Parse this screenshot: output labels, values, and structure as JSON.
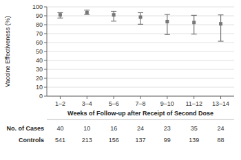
{
  "chart_data": {
    "type": "errorbar",
    "xlabel": "Weeks of Follow-up after Receipt of Second Dose",
    "ylabel": "Vaccine Effectiveness (%)",
    "categories": [
      "1–2",
      "3–4",
      "5–6",
      "7–8",
      "9–10",
      "11–12",
      "13–14"
    ],
    "values": [
      91.0,
      93.5,
      91.0,
      88.5,
      83.5,
      82.5,
      81.0
    ],
    "ci_lower": [
      87.5,
      91.5,
      84.0,
      80.5,
      69.0,
      69.5,
      61.5
    ],
    "ci_upper": [
      93.5,
      96.3,
      95.0,
      93.5,
      91.5,
      90.5,
      91.0
    ],
    "color": "#777777",
    "marker": "square",
    "ylim": [
      0,
      100
    ],
    "yticks": [
      0,
      10,
      20,
      30,
      40,
      50,
      60,
      70,
      80,
      90,
      100
    ],
    "grid": true,
    "table": {
      "rows": [
        {
          "label": "No. of Cases",
          "values": [
            40,
            10,
            16,
            24,
            23,
            35,
            24
          ]
        },
        {
          "label": "Controls",
          "values": [
            541,
            213,
            156,
            137,
            99,
            139,
            88
          ]
        }
      ]
    }
  }
}
